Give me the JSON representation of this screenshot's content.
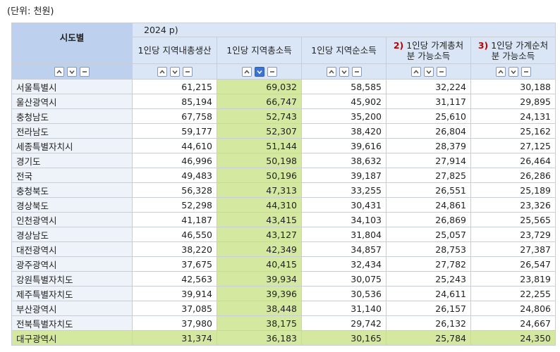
{
  "unit": "(단위: 천원)",
  "table": {
    "corner": "시도별",
    "year": "2024 p)",
    "columns": [
      {
        "label": "1인당 지역내총생산"
      },
      {
        "label": "1인당 지역총소득"
      },
      {
        "label": "1인당 지역순소득"
      },
      {
        "note": "2)",
        "label": "1인당 가계총처분 가능소득"
      },
      {
        "note": "3)",
        "label": "1인당 가계순처분 가능소득"
      }
    ],
    "rows": [
      [
        "서울특별시",
        "61,215",
        "69,032",
        "58,585",
        "32,224",
        "30,188"
      ],
      [
        "울산광역시",
        "85,194",
        "66,747",
        "45,902",
        "31,117",
        "29,895"
      ],
      [
        "충청남도",
        "67,758",
        "52,743",
        "35,200",
        "25,610",
        "24,131"
      ],
      [
        "전라남도",
        "59,177",
        "52,307",
        "38,420",
        "26,804",
        "25,162"
      ],
      [
        "세종특별자치시",
        "44,610",
        "51,144",
        "39,616",
        "28,379",
        "27,125"
      ],
      [
        "경기도",
        "46,996",
        "50,198",
        "38,632",
        "27,914",
        "26,464"
      ],
      [
        "전국",
        "49,483",
        "50,196",
        "39,187",
        "27,825",
        "26,286"
      ],
      [
        "충청북도",
        "56,328",
        "47,313",
        "33,255",
        "26,551",
        "25,189"
      ],
      [
        "경상북도",
        "52,298",
        "44,310",
        "30,431",
        "24,861",
        "23,326"
      ],
      [
        "인천광역시",
        "41,187",
        "43,415",
        "34,103",
        "26,869",
        "25,565"
      ],
      [
        "경상남도",
        "46,550",
        "43,127",
        "31,804",
        "25,057",
        "23,729"
      ],
      [
        "대전광역시",
        "38,220",
        "42,349",
        "34,857",
        "28,753",
        "27,387"
      ],
      [
        "광주광역시",
        "37,675",
        "40,415",
        "32,434",
        "27,782",
        "26,547"
      ],
      [
        "강원특별자치도",
        "42,563",
        "39,934",
        "30,075",
        "25,243",
        "23,819"
      ],
      [
        "제주특별자치도",
        "39,914",
        "39,396",
        "30,536",
        "24,611",
        "22,255"
      ],
      [
        "부산광역시",
        "37,085",
        "38,448",
        "31,140",
        "26,157",
        "24,806"
      ],
      [
        "전북특별자치도",
        "37,980",
        "38,175",
        "29,742",
        "26,132",
        "24,667"
      ],
      [
        "대구광역시",
        "31,374",
        "36,183",
        "30,165",
        "25,784",
        "24,350"
      ]
    ]
  }
}
